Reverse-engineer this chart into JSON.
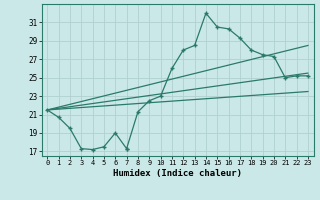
{
  "xlabel": "Humidex (Indice chaleur)",
  "bg_color": "#cbe8e8",
  "line_color": "#2a7a6a",
  "grid_color": "#b0d0d0",
  "ylim": [
    16.5,
    33.0
  ],
  "xlim": [
    -0.5,
    23.5
  ],
  "yticks": [
    17,
    19,
    21,
    23,
    25,
    27,
    29,
    31
  ],
  "xticks": [
    0,
    1,
    2,
    3,
    4,
    5,
    6,
    7,
    8,
    9,
    10,
    11,
    12,
    13,
    14,
    15,
    16,
    17,
    18,
    19,
    20,
    21,
    22,
    23
  ],
  "line1_x": [
    0,
    1,
    2,
    3,
    4,
    5,
    6,
    7,
    7,
    8,
    9,
    10,
    11,
    12,
    13,
    14,
    15,
    16,
    17,
    18,
    19,
    20,
    21,
    22,
    23
  ],
  "line1_y": [
    21.5,
    20.7,
    19.5,
    17.3,
    17.2,
    17.5,
    19.0,
    17.3,
    17.3,
    21.3,
    22.5,
    23.0,
    26.0,
    28.0,
    28.5,
    32.0,
    30.5,
    30.3,
    29.3,
    28.0,
    27.5,
    27.3,
    25.0,
    25.2,
    25.2
  ],
  "line2_x": [
    0,
    23
  ],
  "line2_y": [
    21.5,
    28.5
  ],
  "line3_x": [
    0,
    23
  ],
  "line3_y": [
    21.5,
    25.5
  ],
  "line4_x": [
    0,
    23
  ],
  "line4_y": [
    21.5,
    23.5
  ]
}
